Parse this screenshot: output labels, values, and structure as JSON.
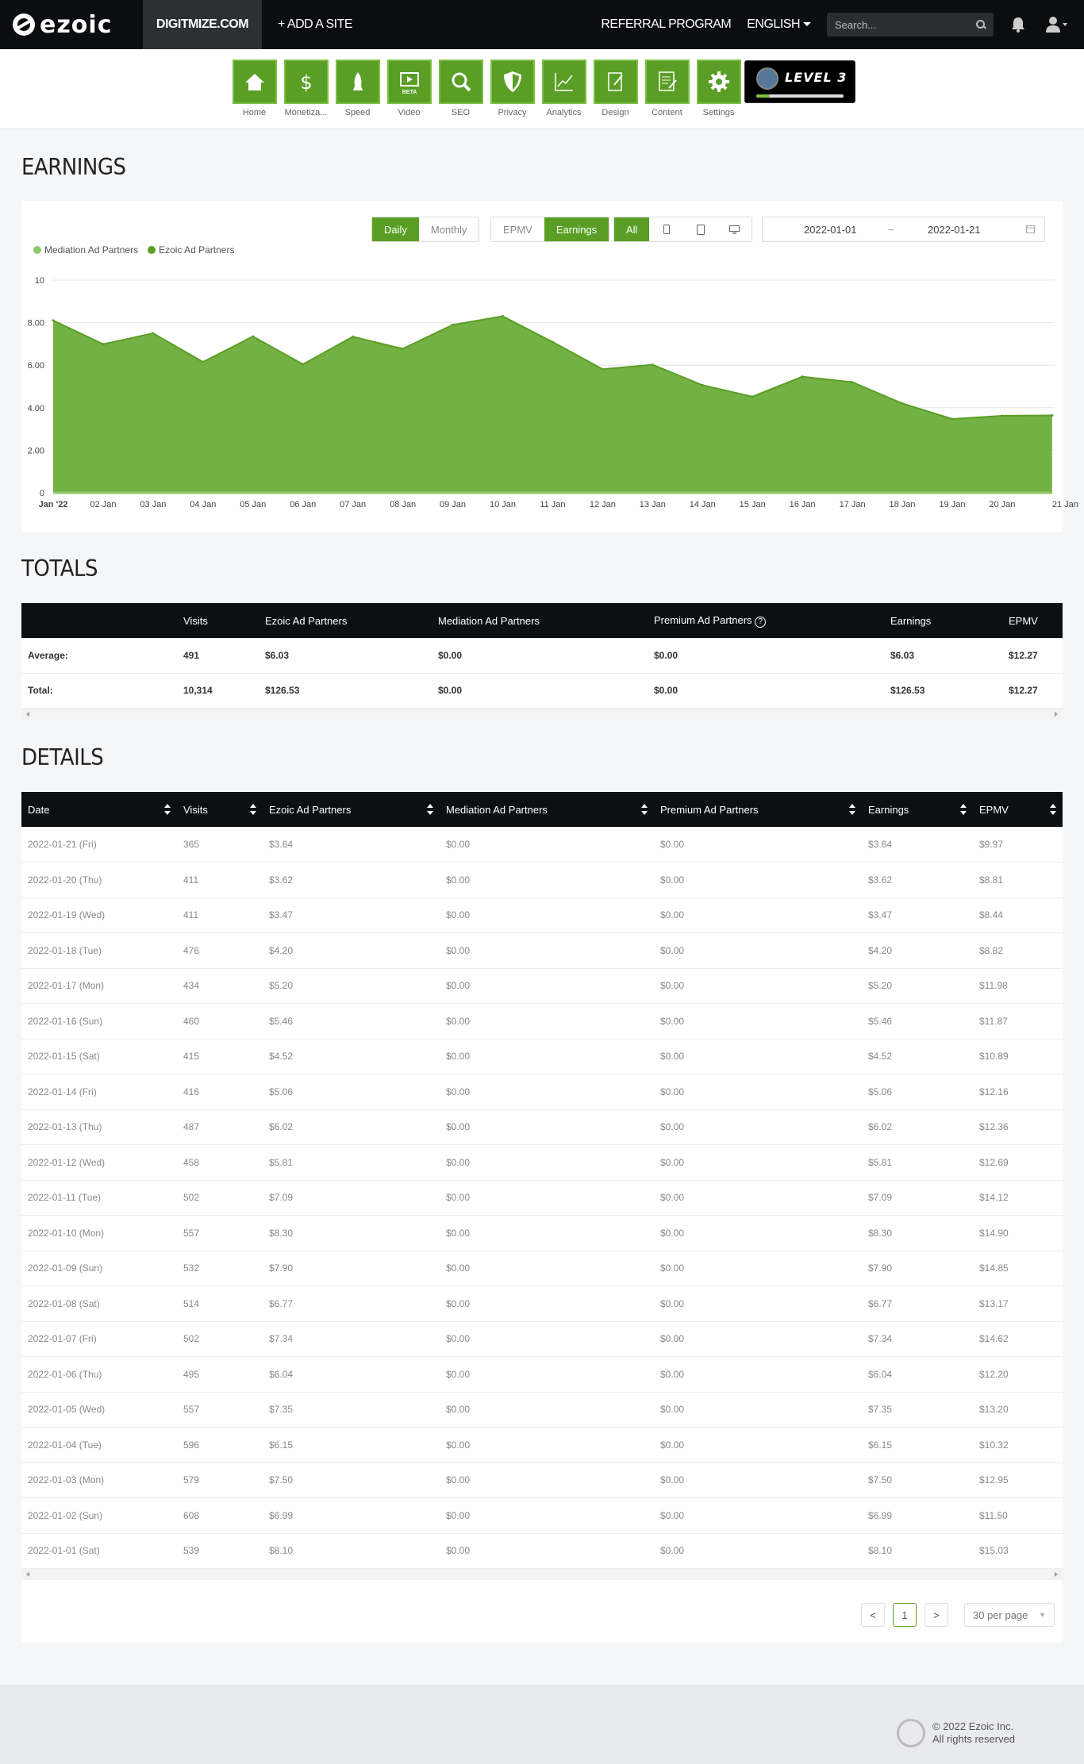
{
  "topbar": {
    "site": "DIGITMIZE.COM",
    "add_site": "+ ADD A SITE",
    "referral": "REFERRAL PROGRAM",
    "language": "ENGLISH",
    "search_placeholder": "Search...",
    "brand": "ezoic"
  },
  "nav": {
    "items": [
      {
        "label": "Home",
        "icon": "home-icon"
      },
      {
        "label": "Monetiza...",
        "icon": "dollar-icon"
      },
      {
        "label": "Speed",
        "icon": "rocket-icon"
      },
      {
        "label": "Video",
        "icon": "video-icon",
        "badge": "BETA"
      },
      {
        "label": "SEO",
        "icon": "magnifier-icon"
      },
      {
        "label": "Privacy",
        "icon": "shield-icon"
      },
      {
        "label": "Analytics",
        "icon": "chart-icon"
      },
      {
        "label": "Design",
        "icon": "design-icon"
      },
      {
        "label": "Content",
        "icon": "content-icon"
      },
      {
        "label": "Settings",
        "icon": "gear-icon"
      }
    ],
    "level_label": "LEVEL 3",
    "level_progress": 0.15
  },
  "earnings": {
    "title": "EARNINGS",
    "period_buttons": [
      "Daily",
      "Monthly"
    ],
    "metric_buttons": [
      "EPMV",
      "Earnings"
    ],
    "device_all": "All",
    "date_start": "2022-01-01",
    "date_sep": "~",
    "date_end": "2022-01-21"
  },
  "chart_data": {
    "type": "area",
    "legend": [
      "Mediation Ad Partners",
      "Ezoic Ad Partners"
    ],
    "legend_colors": [
      "#8fca6a",
      "#5a9e26"
    ],
    "x": [
      "Jan '22",
      "02 Jan",
      "03 Jan",
      "04 Jan",
      "05 Jan",
      "06 Jan",
      "07 Jan",
      "08 Jan",
      "09 Jan",
      "10 Jan",
      "11 Jan",
      "12 Jan",
      "13 Jan",
      "14 Jan",
      "15 Jan",
      "16 Jan",
      "17 Jan",
      "18 Jan",
      "19 Jan",
      "20 Jan",
      "21 Jan"
    ],
    "series": [
      {
        "name": "Ezoic Ad Partners",
        "values": [
          8.1,
          6.99,
          7.5,
          6.15,
          7.35,
          6.04,
          7.34,
          6.77,
          7.9,
          8.3,
          7.09,
          5.81,
          6.02,
          5.06,
          4.52,
          5.46,
          5.2,
          4.2,
          3.47,
          3.62,
          3.64
        ]
      },
      {
        "name": "Mediation Ad Partners",
        "values": [
          0,
          0,
          0,
          0,
          0,
          0,
          0,
          0,
          0,
          0,
          0,
          0,
          0,
          0,
          0,
          0,
          0,
          0,
          0,
          0,
          0
        ]
      }
    ],
    "y_ticks": [
      "0",
      "2.00",
      "4.00",
      "6.00",
      "8.00",
      "10"
    ],
    "ylim": [
      0,
      10
    ],
    "grid": true,
    "legend_position": "top-left"
  },
  "totals": {
    "title": "TOTALS",
    "headers": [
      "",
      "Visits",
      "Ezoic Ad Partners",
      "Mediation Ad Partners",
      "Premium Ad Partners",
      "Earnings",
      "EPMV"
    ],
    "rows": [
      [
        "Average:",
        "491",
        "$6.03",
        "$0.00",
        "$0.00",
        "$6.03",
        "$12.27"
      ],
      [
        "Total:",
        "10,314",
        "$126.53",
        "$0.00",
        "$0.00",
        "$126.53",
        "$12.27"
      ]
    ]
  },
  "details": {
    "title": "DETAILS",
    "headers": [
      "Date",
      "Visits",
      "Ezoic Ad Partners",
      "Mediation Ad Partners",
      "Premium Ad Partners",
      "Earnings",
      "EPMV"
    ],
    "rows": [
      [
        "2022-01-21 (Fri)",
        "365",
        "$3.64",
        "$0.00",
        "$0.00",
        "$3.64",
        "$9.97"
      ],
      [
        "2022-01-20 (Thu)",
        "411",
        "$3.62",
        "$0.00",
        "$0.00",
        "$3.62",
        "$8.81"
      ],
      [
        "2022-01-19 (Wed)",
        "411",
        "$3.47",
        "$0.00",
        "$0.00",
        "$3.47",
        "$8.44"
      ],
      [
        "2022-01-18 (Tue)",
        "476",
        "$4.20",
        "$0.00",
        "$0.00",
        "$4.20",
        "$8.82"
      ],
      [
        "2022-01-17 (Mon)",
        "434",
        "$5.20",
        "$0.00",
        "$0.00",
        "$5.20",
        "$11.98"
      ],
      [
        "2022-01-16 (Sun)",
        "460",
        "$5.46",
        "$0.00",
        "$0.00",
        "$5.46",
        "$11.87"
      ],
      [
        "2022-01-15 (Sat)",
        "415",
        "$4.52",
        "$0.00",
        "$0.00",
        "$4.52",
        "$10.89"
      ],
      [
        "2022-01-14 (Fri)",
        "416",
        "$5.06",
        "$0.00",
        "$0.00",
        "$5.06",
        "$12.16"
      ],
      [
        "2022-01-13 (Thu)",
        "487",
        "$6.02",
        "$0.00",
        "$0.00",
        "$6.02",
        "$12.36"
      ],
      [
        "2022-01-12 (Wed)",
        "458",
        "$5.81",
        "$0.00",
        "$0.00",
        "$5.81",
        "$12.69"
      ],
      [
        "2022-01-11 (Tue)",
        "502",
        "$7.09",
        "$0.00",
        "$0.00",
        "$7.09",
        "$14.12"
      ],
      [
        "2022-01-10 (Mon)",
        "557",
        "$8.30",
        "$0.00",
        "$0.00",
        "$8.30",
        "$14.90"
      ],
      [
        "2022-01-09 (Sun)",
        "532",
        "$7.90",
        "$0.00",
        "$0.00",
        "$7.90",
        "$14.85"
      ],
      [
        "2022-01-08 (Sat)",
        "514",
        "$6.77",
        "$0.00",
        "$0.00",
        "$6.77",
        "$13.17"
      ],
      [
        "2022-01-07 (Fri)",
        "502",
        "$7.34",
        "$0.00",
        "$0.00",
        "$7.34",
        "$14.62"
      ],
      [
        "2022-01-06 (Thu)",
        "495",
        "$6.04",
        "$0.00",
        "$0.00",
        "$6.04",
        "$12.20"
      ],
      [
        "2022-01-05 (Wed)",
        "557",
        "$7.35",
        "$0.00",
        "$0.00",
        "$7.35",
        "$13.20"
      ],
      [
        "2022-01-04 (Tue)",
        "596",
        "$6.15",
        "$0.00",
        "$0.00",
        "$6.15",
        "$10.32"
      ],
      [
        "2022-01-03 (Mon)",
        "579",
        "$7.50",
        "$0.00",
        "$0.00",
        "$7.50",
        "$12.95"
      ],
      [
        "2022-01-02 (Sun)",
        "608",
        "$6.99",
        "$0.00",
        "$0.00",
        "$6.99",
        "$11.50"
      ],
      [
        "2022-01-01 (Sat)",
        "539",
        "$8.10",
        "$0.00",
        "$0.00",
        "$8.10",
        "$15.03"
      ]
    ],
    "pager": {
      "prev": "<",
      "current": "1",
      "next": ">",
      "per_page": "30 per page"
    }
  },
  "footer": {
    "copyright": "© 2022 Ezoic Inc.",
    "rights": "All rights reserved"
  },
  "colors": {
    "accent": "#5a9e26",
    "topbar": "#0b0d10"
  }
}
